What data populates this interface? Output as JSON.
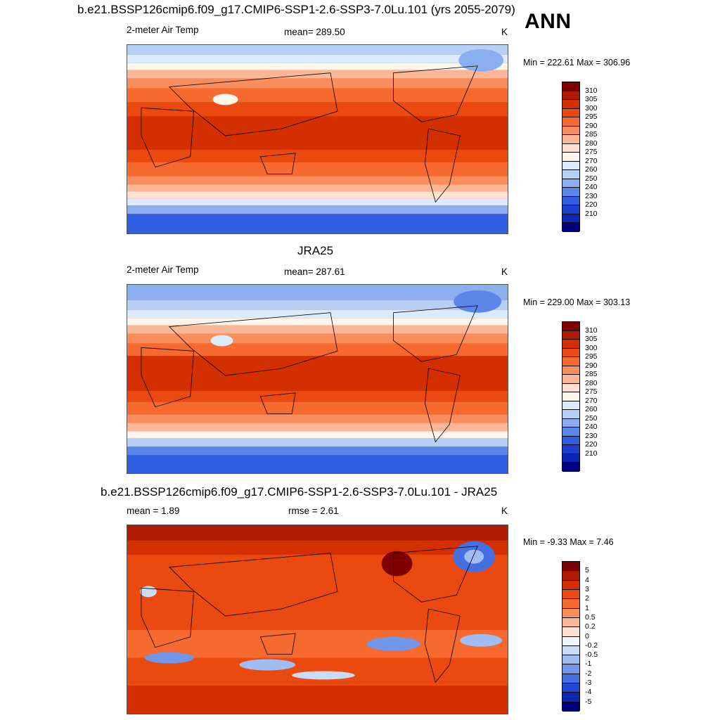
{
  "panel1": {
    "title": "b.e21.BSSP126cmip6.f09_g17.CMIP6-SSP1-2.6-SSP3-7.0Lu.101 (yrs 2055-2079)",
    "season": "ANN",
    "left_label": "2-meter Air Temp",
    "center_label": "mean= 289.50",
    "units": "K",
    "minmax": "Min = 222.61 Max = 306.96"
  },
  "panel2": {
    "title": "JRA25",
    "left_label": "2-meter Air Temp",
    "center_label": "mean= 287.61",
    "units": "K",
    "minmax": "Min = 229.00 Max = 303.13"
  },
  "panel3": {
    "title": "b.e21.BSSP126cmip6.f09_g17.CMIP6-SSP1-2.6-SSP3-7.0Lu.101 - JRA25",
    "left_label": "mean =   1.89",
    "center_label": "rmse =   2.61",
    "units": "K",
    "minmax": "Min =  -9.33 Max =   7.46"
  },
  "temp_colorbar": {
    "labels": [
      "310",
      "305",
      "300",
      "295",
      "290",
      "285",
      "280",
      "275",
      "270",
      "260",
      "250",
      "240",
      "230",
      "220",
      "210"
    ],
    "colors": [
      "#800000",
      "#b01a00",
      "#d42f00",
      "#ea4a10",
      "#f66a30",
      "#f98d5c",
      "#fbb597",
      "#fde0cf",
      "#fdf4ec",
      "#dcebfb",
      "#b5cff5",
      "#8aaef0",
      "#5a86ea",
      "#2f5fe0",
      "#1a3fd0",
      "#0b26b5",
      "#000080"
    ]
  },
  "diff_colorbar": {
    "labels": [
      "5",
      "4",
      "3",
      "2",
      "1",
      "0.5",
      "0.2",
      "0",
      "-0.2",
      "-0.5",
      "-1",
      "-2",
      "-3",
      "-4",
      "-5"
    ],
    "colors": [
      "#800000",
      "#b01a00",
      "#d42f00",
      "#ea4a10",
      "#f66a30",
      "#f98d5c",
      "#fbb597",
      "#fde0cf",
      "#eef4fc",
      "#c8dbf7",
      "#9fbdf2",
      "#7097ea",
      "#4470e2",
      "#2048d4",
      "#0b28b5",
      "#000080"
    ]
  }
}
